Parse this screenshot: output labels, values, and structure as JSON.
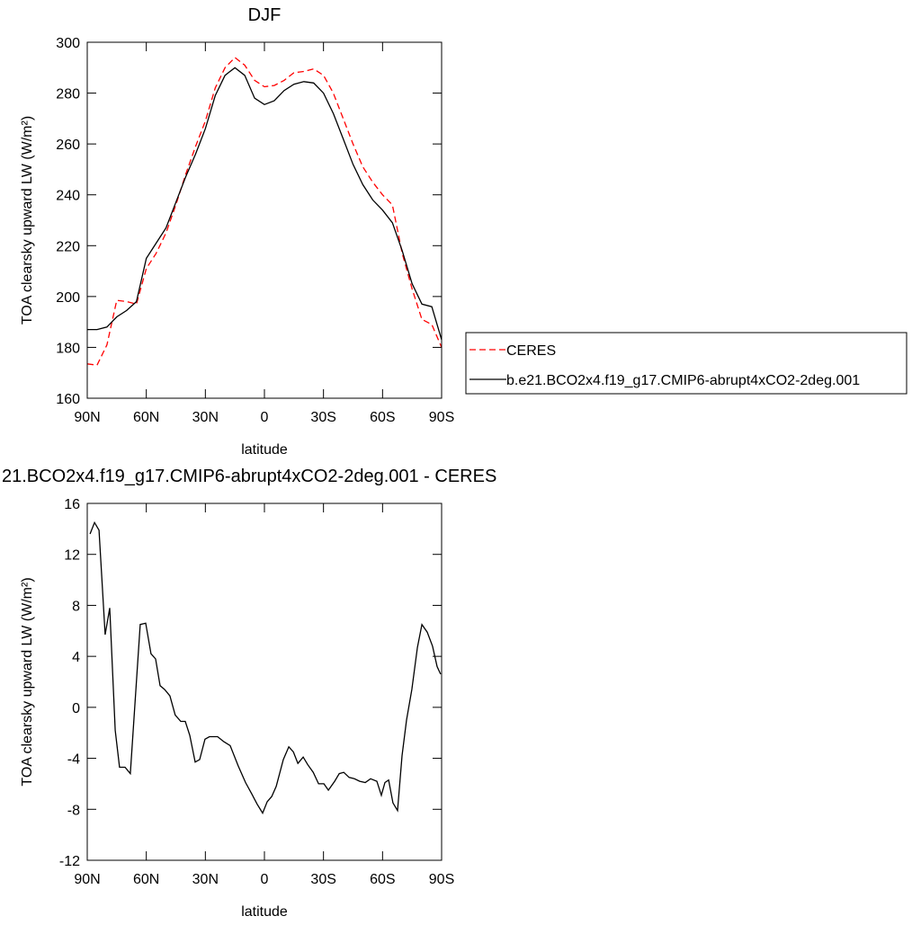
{
  "chart_data": [
    {
      "type": "line",
      "title": "DJF",
      "xlabel": "latitude",
      "ylabel": "TOA clearsky upward LW (W/m²)",
      "x": [
        90,
        85,
        80,
        75,
        70,
        65,
        60,
        55,
        50,
        45,
        40,
        35,
        30,
        25,
        20,
        15,
        10,
        5,
        0,
        -5,
        -10,
        -15,
        -20,
        -25,
        -30,
        -35,
        -40,
        -45,
        -50,
        -55,
        -60,
        -65,
        -70,
        -75,
        -80,
        -85,
        -90
      ],
      "series": [
        {
          "name": "CERES",
          "color": "#ff0000",
          "dashed": true,
          "values": [
            173.5,
            173,
            181,
            198.5,
            198,
            197,
            211,
            217,
            225,
            236,
            248,
            259,
            269,
            282,
            290,
            294,
            291,
            285,
            282.5,
            283,
            285,
            288,
            288.5,
            289.5,
            287,
            280,
            270,
            260,
            251,
            245,
            240,
            236,
            217,
            203,
            191,
            189,
            180
          ]
        },
        {
          "name": "b.e21.BCO2x4.f19_g17.CMIP6-abrupt4xCO2-2deg.001",
          "color": "#000000",
          "dashed": false,
          "values": [
            187,
            187,
            188,
            192,
            194.5,
            198,
            215,
            221,
            227,
            237,
            247,
            256,
            266,
            279,
            287,
            290,
            287,
            278,
            275.5,
            277,
            281,
            283.5,
            284.5,
            284,
            280,
            272,
            262,
            252,
            244,
            238,
            234,
            229,
            218,
            205,
            197,
            196,
            183
          ]
        }
      ],
      "xlim": [
        90,
        -90
      ],
      "xticks": [
        {
          "value": 90,
          "label": "90N"
        },
        {
          "value": 60,
          "label": "60N"
        },
        {
          "value": 30,
          "label": "30N"
        },
        0,
        {
          "value": -30,
          "label": "30S"
        },
        {
          "value": -60,
          "label": "60S"
        },
        {
          "value": -90,
          "label": "90S"
        }
      ],
      "ylim": [
        160,
        300
      ],
      "yticks": [
        160,
        180,
        200,
        220,
        240,
        260,
        280,
        300
      ],
      "legend": true
    },
    {
      "type": "line",
      "title": "21.BCO2x4.f19_g17.CMIP6-abrupt4xCO2-2deg.001 - CERES",
      "xlabel": "latitude",
      "ylabel": "TOA clearsky upward LW (W/m²)",
      "x": [
        88.6,
        86.3,
        84,
        80.9,
        78.6,
        75.8,
        73.6,
        70.8,
        68.1,
        63.1,
        60.3,
        57.6,
        55.3,
        53,
        50.7,
        48,
        45.3,
        42.5,
        40.2,
        37.9,
        35.2,
        32.9,
        30.2,
        27.9,
        23.8,
        20.6,
        17.4,
        13.3,
        9.6,
        6.4,
        3.7,
        0.9,
        -1.4,
        -3.7,
        -6,
        -9.6,
        -12.4,
        -14.7,
        -17,
        -19.7,
        -22,
        -24.8,
        -27.5,
        -30.2,
        -32.5,
        -35.7,
        -38,
        -40.3,
        -43,
        -45.7,
        -48.4,
        -51.2,
        -53.9,
        -57.1,
        -59.4,
        -61.2,
        -63.1,
        -65.3,
        -67.6,
        -69.9,
        -72.2,
        -74.9,
        -77.7,
        -80,
        -82.7,
        -85.4,
        -87.7,
        -89.5
      ],
      "values": [
        13.6,
        14.5,
        13.9,
        5.7,
        7.8,
        -1.8,
        -4.7,
        -4.7,
        -5.2,
        6.5,
        6.6,
        4.2,
        3.8,
        1.7,
        1.4,
        0.9,
        -0.6,
        -1.1,
        -1.1,
        -2.2,
        -4.3,
        -4.1,
        -2.5,
        -2.3,
        -2.3,
        -2.7,
        -3,
        -4.6,
        -5.9,
        -6.8,
        -7.6,
        -8.3,
        -7.4,
        -7,
        -6.2,
        -4.1,
        -3.1,
        -3.5,
        -4.4,
        -3.9,
        -4.5,
        -5.1,
        -6,
        -6,
        -6.5,
        -5.8,
        -5.2,
        -5.1,
        -5.5,
        -5.6,
        -5.8,
        -5.9,
        -5.6,
        -5.8,
        -6.9,
        -5.9,
        -5.7,
        -7.5,
        -8.1,
        -3.8,
        -1,
        1.4,
        4.7,
        6.5,
        5.9,
        4.8,
        3.2,
        2.6
      ],
      "color": "#000000",
      "xlim": [
        90,
        -90
      ],
      "xticks": [
        {
          "value": 90,
          "label": "90N"
        },
        {
          "value": 60,
          "label": "60N"
        },
        {
          "value": 30,
          "label": "30N"
        },
        0,
        {
          "value": -30,
          "label": "30S"
        },
        {
          "value": -60,
          "label": "60S"
        },
        {
          "value": -90,
          "label": "90S"
        }
      ],
      "ylim": [
        -12,
        16
      ],
      "yticks": [
        -12,
        -8,
        -4,
        0,
        4,
        8,
        12,
        16
      ],
      "legend": false
    }
  ]
}
